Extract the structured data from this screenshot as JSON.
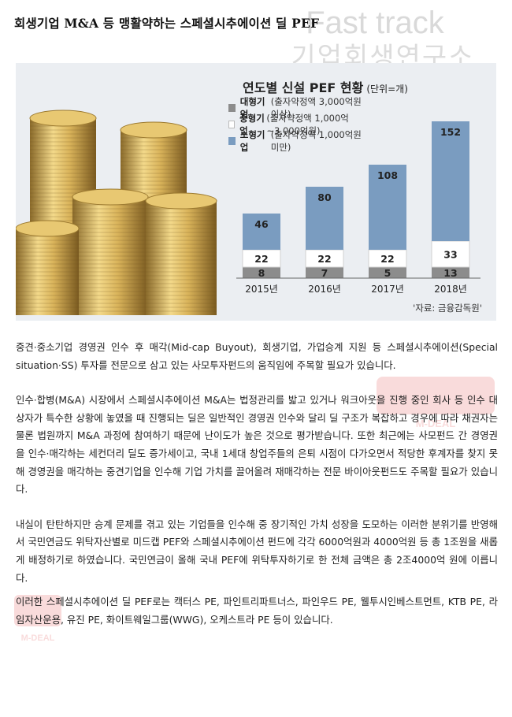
{
  "page_title": "회생기업 M&A 등 맹활약하는 스페셜시추에이션 딜 PEF",
  "watermark": {
    "line1": "Fast track",
    "line2": "기업회생연구소",
    "badge": "M-DEAL"
  },
  "figure": {
    "source": "'자료: 금융감독원'",
    "legend": [
      {
        "name": "대형기업",
        "desc": "(출자약정액 3,000억원 이상)",
        "color": "#8c8c8c"
      },
      {
        "name": "중형기업",
        "desc": "(출자약정액 1,000억~3,000억원)",
        "color": "#ffffff"
      },
      {
        "name": "소형기업",
        "desc": "(출자약정액 1,000억원 미만)",
        "color": "#7a9cc0"
      }
    ]
  },
  "chart_data": {
    "type": "bar",
    "title": "연도별 신설 PEF 현황",
    "unit": "(단위=개)",
    "categories": [
      "2015년",
      "2016년",
      "2017년",
      "2018년"
    ],
    "stacked": true,
    "series": [
      {
        "name": "대형기업",
        "values": [
          8,
          7,
          5,
          13
        ],
        "color": "#8c8c8c"
      },
      {
        "name": "중형기업",
        "values": [
          22,
          22,
          22,
          33
        ],
        "color": "#ffffff"
      },
      {
        "name": "소형기업",
        "values": [
          46,
          80,
          108,
          152
        ],
        "color": "#7a9cc0"
      }
    ]
  },
  "paragraphs": [
    "중견·중소기업 경영권 인수 후 매각(Mid-cap Buyout), 회생기업, 가업승계 지원 등 스페셜시추에이션(Special situation·SS) 투자를 전문으로 삼고 있는 사모투자펀드의 움직임에 주목할 필요가 있습니다.",
    "인수·합병(M&A) 시장에서 스페셜시추에이션 M&A는 법정관리를 밟고 있거나 워크아웃을 진행 중인 회사 등 인수 대상자가 특수한 상황에 놓였을 때 진행되는 딜은 일반적인 경영권 인수와 달리 딜 구조가 복잡하고 경우에 따라 채권자는 물론 법원까지 M&A 과정에 참여하기 때문에 난이도가 높은 것으로 평가받습니다.  또한 최근에는 사모펀드 간 경영권을 인수·매각하는 세컨더리 딜도 증가세이고, 국내 1세대 창업주들의 은퇴 시점이 다가오면서 적당한 후계자를 찾지 못해 경영권을 매각하는 중견기업을 인수해 기업 가치를 끌어올려 재매각하는 전문 바이아웃펀드도 주목할 필요가 있습니다.",
    "내실이 탄탄하지만 승계 문제를 겪고 있는 기업들을 인수해 중 장기적인 가치 성장을 도모하는 이러한 분위기를 반영해서 국민연금도 위탁자산별로 미드캡 PEF와 스페셜시추에이션 펀드에 각각 6000억원과 4000억원 등 총 1조원을 새롭게 배정하기로 하였습니다. 국민연금이 올해 국내 PEF에 위탁투자하기로 한 전체 금액은 총 2조4000억 원에 이릅니다.",
    "이러한 스페셜시추에이션 딜 PEF로는 캑터스 PE, 파인트리파트너스, 파인우드 PE, 웰투시인베스트먼트, KTB PE, 라임자산운용, 유진 PE, 화이트웨일그룹(WWG), 오케스트라 PE 등이 있습니다."
  ]
}
